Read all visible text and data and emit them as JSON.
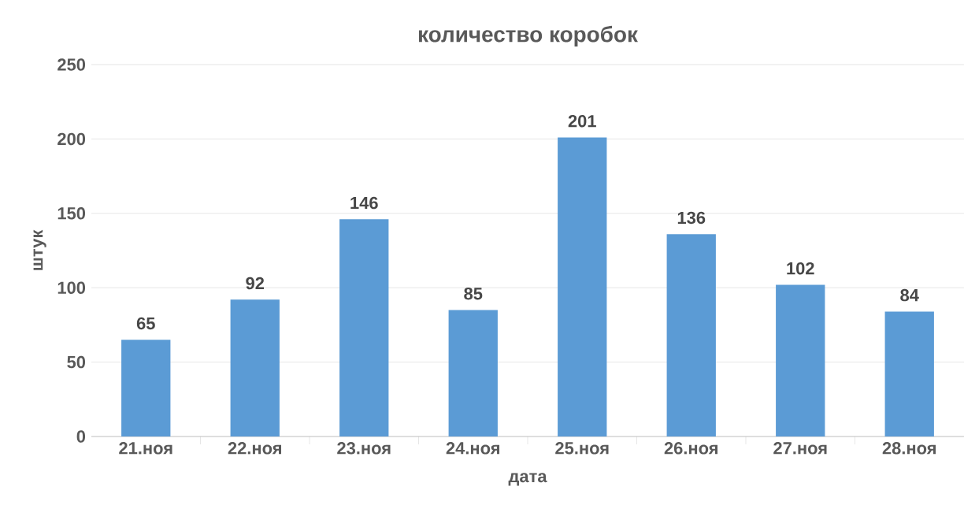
{
  "chart_data": {
    "type": "bar",
    "title": "количество коробок",
    "xlabel": "дата",
    "ylabel": "штук",
    "categories": [
      "21.ноя",
      "22.ноя",
      "23.ноя",
      "24.ноя",
      "25.ноя",
      "26.ноя",
      "27.ноя",
      "28.ноя"
    ],
    "values": [
      65,
      92,
      146,
      85,
      201,
      136,
      102,
      84
    ],
    "color": "#5b9bd5",
    "ylim": [
      0,
      250
    ],
    "yticks": [
      0,
      50,
      100,
      150,
      200,
      250
    ],
    "grid": "y",
    "data_labels": true
  }
}
